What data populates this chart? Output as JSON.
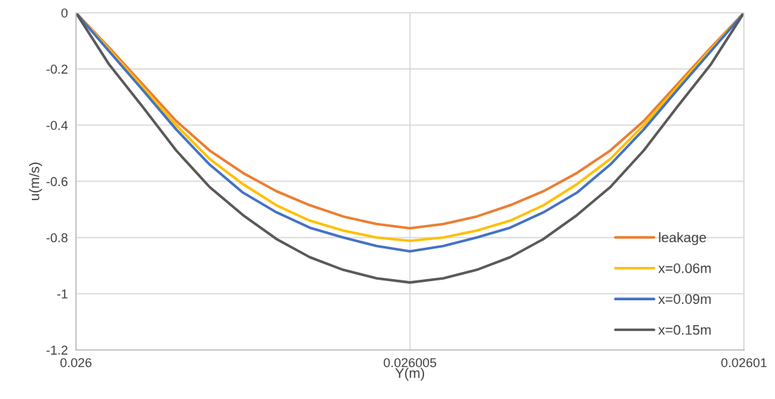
{
  "chart_data": {
    "type": "line",
    "xlabel": "Y(m)",
    "ylabel": "u(m/s)",
    "x": [
      0.026,
      0.0260005,
      0.026001,
      0.0260015,
      0.026002,
      0.0260025,
      0.026003,
      0.0260035,
      0.026004,
      0.0260045,
      0.026005,
      0.0260055,
      0.026006,
      0.0260065,
      0.026007,
      0.0260075,
      0.026008,
      0.0260085,
      0.026009,
      0.0260095,
      0.02601
    ],
    "series": [
      {
        "name": "leakage",
        "color": "#ed7d31",
        "values": [
          0,
          -0.125,
          -0.255,
          -0.385,
          -0.49,
          -0.57,
          -0.635,
          -0.685,
          -0.725,
          -0.752,
          -0.767,
          -0.752,
          -0.725,
          -0.685,
          -0.635,
          -0.57,
          -0.49,
          -0.385,
          -0.255,
          -0.125,
          0
        ]
      },
      {
        "name": "x=0.06m",
        "color": "#ffc000",
        "values": [
          0,
          -0.132,
          -0.265,
          -0.4,
          -0.52,
          -0.61,
          -0.685,
          -0.74,
          -0.775,
          -0.8,
          -0.812,
          -0.8,
          -0.775,
          -0.74,
          -0.685,
          -0.61,
          -0.52,
          -0.4,
          -0.265,
          -0.132,
          0
        ]
      },
      {
        "name": "x=0.09m",
        "color": "#4472c4",
        "values": [
          0,
          -0.138,
          -0.275,
          -0.415,
          -0.54,
          -0.64,
          -0.71,
          -0.765,
          -0.8,
          -0.83,
          -0.849,
          -0.83,
          -0.8,
          -0.765,
          -0.71,
          -0.64,
          -0.54,
          -0.415,
          -0.275,
          -0.138,
          0
        ]
      },
      {
        "name": "x=0.15m",
        "color": "#595959",
        "values": [
          0,
          -0.185,
          -0.335,
          -0.49,
          -0.62,
          -0.72,
          -0.805,
          -0.87,
          -0.915,
          -0.945,
          -0.96,
          -0.945,
          -0.915,
          -0.87,
          -0.805,
          -0.72,
          -0.62,
          -0.49,
          -0.335,
          -0.185,
          0
        ]
      }
    ],
    "xlim": [
      0.026,
      0.02601
    ],
    "xticks": [
      0.026,
      0.026005,
      0.02601
    ],
    "ylim": [
      -1.2,
      0
    ],
    "yticks": [
      0,
      -0.2,
      -0.4,
      -0.6,
      -0.8,
      -1,
      -1.2
    ],
    "grid": true,
    "legend": "bottom right",
    "marker": "none",
    "line_style": "solid"
  }
}
